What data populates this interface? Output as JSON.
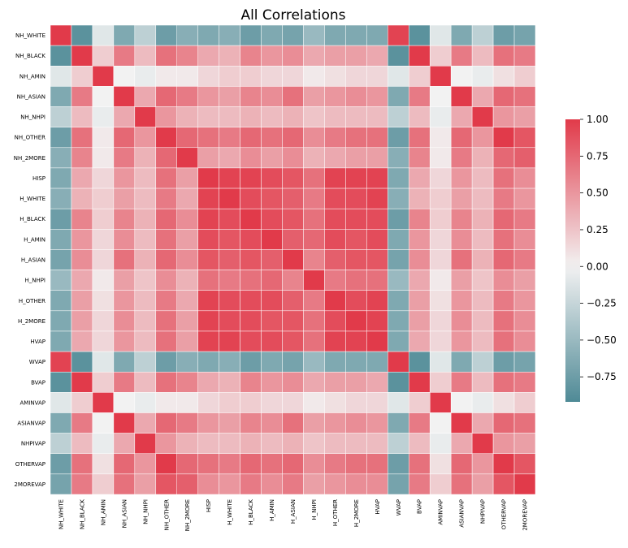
{
  "chart_data": {
    "type": "heatmap",
    "title": "All Correlations",
    "labels": [
      "NH_WHITE",
      "NH_BLACK",
      "NH_AMIN",
      "NH_ASIAN",
      "NH_NHPI",
      "NH_OTHER",
      "NH_2MORE",
      "HISP",
      "H_WHITE",
      "H_BLACK",
      "H_AMIN",
      "H_ASIAN",
      "H_NHPI",
      "H_OTHER",
      "H_2MORE",
      "HVAP",
      "WVAP",
      "BVAP",
      "AMINVAP",
      "ASIANVAP",
      "NHPIVAP",
      "OTHERVAP",
      "2MOREVAP"
    ],
    "matrix": [
      [
        1.0,
        -0.85,
        -0.1,
        -0.65,
        -0.3,
        -0.75,
        -0.6,
        -0.65,
        -0.6,
        -0.75,
        -0.65,
        -0.7,
        -0.5,
        -0.65,
        -0.65,
        -0.65,
        0.95,
        -0.85,
        -0.1,
        -0.65,
        -0.3,
        -0.75,
        -0.7
      ],
      [
        -0.85,
        1.0,
        0.2,
        0.65,
        0.3,
        0.7,
        0.6,
        0.4,
        0.35,
        0.6,
        0.5,
        0.55,
        0.4,
        0.45,
        0.45,
        0.4,
        -0.85,
        1.0,
        0.2,
        0.65,
        0.3,
        0.7,
        0.65
      ],
      [
        -0.1,
        0.2,
        1.0,
        0.0,
        -0.05,
        0.05,
        0.05,
        0.15,
        0.2,
        0.2,
        0.15,
        0.15,
        0.05,
        0.1,
        0.15,
        0.15,
        -0.1,
        0.2,
        1.0,
        0.0,
        -0.05,
        0.1,
        0.2
      ],
      [
        -0.65,
        0.65,
        0.0,
        1.0,
        0.4,
        0.75,
        0.65,
        0.5,
        0.45,
        0.6,
        0.55,
        0.7,
        0.45,
        0.5,
        0.55,
        0.5,
        -0.65,
        0.65,
        0.0,
        1.0,
        0.4,
        0.75,
        0.7
      ],
      [
        -0.3,
        0.3,
        -0.05,
        0.4,
        1.0,
        0.5,
        0.35,
        0.3,
        0.3,
        0.35,
        0.3,
        0.35,
        0.25,
        0.3,
        0.3,
        0.3,
        -0.3,
        0.3,
        -0.05,
        0.4,
        1.0,
        0.5,
        0.45
      ],
      [
        -0.75,
        0.7,
        0.05,
        0.75,
        0.5,
        1.0,
        0.75,
        0.7,
        0.65,
        0.75,
        0.7,
        0.75,
        0.55,
        0.65,
        0.7,
        0.7,
        -0.75,
        0.7,
        0.05,
        0.75,
        0.5,
        1.0,
        0.85
      ],
      [
        -0.6,
        0.6,
        0.05,
        0.65,
        0.35,
        0.75,
        1.0,
        0.45,
        0.4,
        0.55,
        0.45,
        0.55,
        0.35,
        0.4,
        0.45,
        0.45,
        -0.6,
        0.6,
        0.05,
        0.65,
        0.35,
        0.75,
        0.8
      ],
      [
        -0.65,
        0.4,
        0.15,
        0.5,
        0.3,
        0.7,
        0.45,
        1.0,
        0.95,
        0.95,
        0.9,
        0.85,
        0.7,
        0.95,
        0.95,
        0.95,
        -0.65,
        0.4,
        0.15,
        0.5,
        0.3,
        0.7,
        0.55
      ],
      [
        -0.6,
        0.35,
        0.2,
        0.45,
        0.3,
        0.65,
        0.4,
        0.95,
        1.0,
        0.9,
        0.85,
        0.8,
        0.65,
        0.9,
        0.9,
        0.95,
        -0.6,
        0.35,
        0.2,
        0.45,
        0.3,
        0.65,
        0.5
      ],
      [
        -0.75,
        0.6,
        0.2,
        0.6,
        0.35,
        0.75,
        0.55,
        0.95,
        0.9,
        1.0,
        0.9,
        0.85,
        0.7,
        0.9,
        0.9,
        0.9,
        -0.75,
        0.6,
        0.2,
        0.6,
        0.35,
        0.75,
        0.65
      ],
      [
        -0.65,
        0.5,
        0.15,
        0.55,
        0.3,
        0.7,
        0.45,
        0.9,
        0.85,
        0.9,
        1.0,
        0.8,
        0.75,
        0.9,
        0.85,
        0.9,
        -0.65,
        0.5,
        0.15,
        0.55,
        0.3,
        0.7,
        0.55
      ],
      [
        -0.7,
        0.55,
        0.15,
        0.7,
        0.35,
        0.75,
        0.55,
        0.85,
        0.8,
        0.85,
        0.8,
        1.0,
        0.6,
        0.8,
        0.85,
        0.85,
        -0.7,
        0.55,
        0.15,
        0.7,
        0.35,
        0.75,
        0.65
      ],
      [
        -0.5,
        0.4,
        0.05,
        0.45,
        0.25,
        0.55,
        0.35,
        0.7,
        0.65,
        0.7,
        0.75,
        0.6,
        1.0,
        0.65,
        0.7,
        0.7,
        -0.5,
        0.4,
        0.05,
        0.45,
        0.25,
        0.55,
        0.45
      ],
      [
        -0.65,
        0.45,
        0.1,
        0.5,
        0.3,
        0.65,
        0.4,
        0.95,
        0.9,
        0.9,
        0.9,
        0.8,
        0.65,
        1.0,
        0.9,
        0.95,
        -0.65,
        0.45,
        0.1,
        0.5,
        0.3,
        0.65,
        0.5
      ],
      [
        -0.65,
        0.45,
        0.15,
        0.55,
        0.3,
        0.7,
        0.45,
        0.95,
        0.9,
        0.9,
        0.85,
        0.85,
        0.7,
        0.9,
        1.0,
        0.95,
        -0.65,
        0.45,
        0.15,
        0.55,
        0.3,
        0.7,
        0.55
      ],
      [
        -0.65,
        0.4,
        0.15,
        0.5,
        0.3,
        0.7,
        0.45,
        0.95,
        0.95,
        0.9,
        0.9,
        0.85,
        0.7,
        0.95,
        0.95,
        1.0,
        -0.65,
        0.4,
        0.15,
        0.5,
        0.3,
        0.7,
        0.55
      ],
      [
        0.95,
        -0.85,
        -0.1,
        -0.65,
        -0.3,
        -0.75,
        -0.6,
        -0.65,
        -0.6,
        -0.75,
        -0.65,
        -0.7,
        -0.5,
        -0.65,
        -0.65,
        -0.65,
        1.0,
        -0.85,
        -0.1,
        -0.65,
        -0.3,
        -0.75,
        -0.7
      ],
      [
        -0.85,
        1.0,
        0.2,
        0.65,
        0.3,
        0.7,
        0.6,
        0.4,
        0.35,
        0.6,
        0.5,
        0.55,
        0.4,
        0.45,
        0.45,
        0.4,
        -0.85,
        1.0,
        0.2,
        0.65,
        0.3,
        0.7,
        0.65
      ],
      [
        -0.1,
        0.2,
        1.0,
        0.0,
        -0.05,
        0.05,
        0.05,
        0.15,
        0.2,
        0.2,
        0.15,
        0.15,
        0.05,
        0.1,
        0.15,
        0.15,
        -0.1,
        0.2,
        1.0,
        0.0,
        -0.05,
        0.1,
        0.2
      ],
      [
        -0.65,
        0.65,
        0.0,
        1.0,
        0.4,
        0.75,
        0.65,
        0.5,
        0.45,
        0.6,
        0.55,
        0.7,
        0.45,
        0.5,
        0.55,
        0.5,
        -0.65,
        0.65,
        0.0,
        1.0,
        0.4,
        0.75,
        0.7
      ],
      [
        -0.3,
        0.3,
        -0.05,
        0.4,
        1.0,
        0.5,
        0.35,
        0.3,
        0.3,
        0.35,
        0.3,
        0.35,
        0.25,
        0.3,
        0.3,
        0.3,
        -0.3,
        0.3,
        -0.05,
        0.4,
        1.0,
        0.5,
        0.45
      ],
      [
        -0.75,
        0.7,
        0.1,
        0.75,
        0.5,
        1.0,
        0.75,
        0.7,
        0.65,
        0.75,
        0.7,
        0.75,
        0.55,
        0.65,
        0.7,
        0.7,
        -0.75,
        0.7,
        0.1,
        0.75,
        0.5,
        1.0,
        0.85
      ],
      [
        -0.7,
        0.65,
        0.2,
        0.7,
        0.45,
        0.85,
        0.8,
        0.55,
        0.5,
        0.65,
        0.55,
        0.65,
        0.45,
        0.5,
        0.55,
        0.55,
        -0.7,
        0.65,
        0.2,
        0.7,
        0.45,
        0.85,
        1.0
      ]
    ],
    "vmin": -0.92,
    "vmax": 1.0,
    "colorbar": {
      "ticks": [
        1.0,
        0.75,
        0.5,
        0.25,
        0.0,
        -0.25,
        -0.5,
        -0.75
      ],
      "tick_labels": [
        "1.00",
        "0.75",
        "0.50",
        "0.25",
        "0.00",
        "−0.25",
        "−0.50",
        "−0.75"
      ]
    },
    "colors": {
      "negative": "#4f8a96",
      "neutral": "#f2f2f2",
      "positive": "#e13a4a"
    }
  }
}
